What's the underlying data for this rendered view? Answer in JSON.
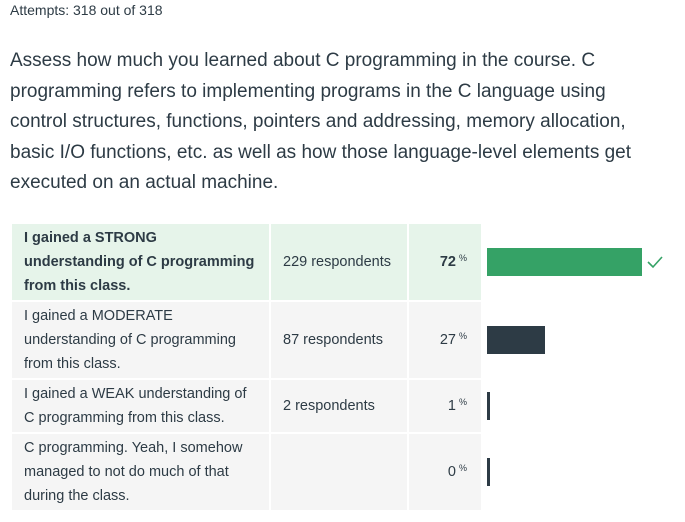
{
  "attempts": "Attempts: 318 out of 318",
  "question": "Assess how much you learned about C programming in the course. C programming refers to implementing programs in the C language using control structures, functions, pointers and addressing, memory allocation, basic I/O functions, etc. as well as how those language-level elements get executed on an actual machine.",
  "answers": [
    {
      "label": "I gained a STRONG understanding of C programming from this class.",
      "respondents": "229 respondents",
      "percent": "72",
      "percent_value": 72,
      "correct": true
    },
    {
      "label": "I gained a MODERATE understanding of C programming from this class.",
      "respondents": "87 respondents",
      "percent": "27",
      "percent_value": 27,
      "correct": false
    },
    {
      "label": "I gained a WEAK understanding of C programming from this class.",
      "respondents": "2 respondents",
      "percent": "1",
      "percent_value": 1,
      "correct": false
    },
    {
      "label": "C programming. Yeah, I somehow managed to not do much of that during the class.",
      "respondents": "",
      "percent": "0",
      "percent_value": 0,
      "correct": false
    }
  ],
  "percent_sign": "%",
  "colors": {
    "correct_bar": "#35a266",
    "bar": "#2d3b45",
    "correct_bg": "#e6f4ea",
    "row_bg": "#f5f5f5"
  },
  "icons": {
    "correct": "check-icon"
  }
}
